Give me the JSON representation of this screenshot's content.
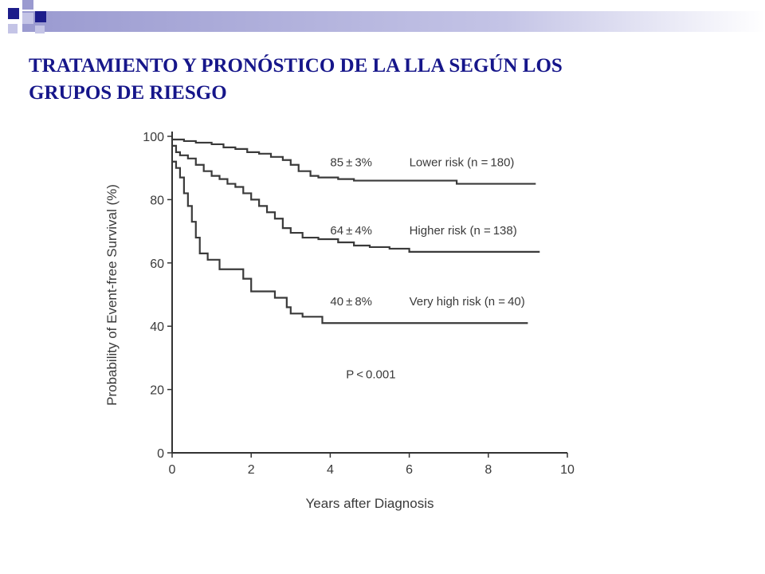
{
  "slide": {
    "title_line1": "TRATAMIENTO Y PRONÓSTICO DE LA LLA SEGÚN LOS",
    "title_line2": "GRUPOS DE RIESGO",
    "title_color": "#16168a",
    "accent_colors": [
      "#1c1c8a",
      "#9a9ad0",
      "#c4c4e6"
    ]
  },
  "chart_data": {
    "type": "line",
    "title": "",
    "xlabel": "Years after Diagnosis",
    "ylabel": "Probability of Event-free Survival (%)",
    "xlim": [
      0,
      10
    ],
    "ylim": [
      0,
      100
    ],
    "xticks": [
      0,
      2,
      4,
      6,
      8,
      10
    ],
    "yticks": [
      0,
      20,
      40,
      60,
      80,
      100
    ],
    "grid": false,
    "step": true,
    "series": [
      {
        "name": "Lower risk (n = 180)",
        "estimate": "85 ± 3%",
        "x": [
          0,
          0.3,
          0.6,
          1.0,
          1.3,
          1.6,
          1.9,
          2.2,
          2.5,
          2.8,
          3.0,
          3.2,
          3.5,
          3.7,
          4.2,
          4.6,
          5.0,
          6.0,
          7.2,
          9.2
        ],
        "values": [
          99,
          98.5,
          98,
          97.5,
          96.5,
          96,
          95,
          94.5,
          93.5,
          92.5,
          91,
          89,
          87.5,
          87,
          86.5,
          86,
          86,
          86,
          85,
          85
        ]
      },
      {
        "name": "Higher risk (n = 138)",
        "estimate": "64 ± 4%",
        "x": [
          0,
          0.1,
          0.2,
          0.4,
          0.6,
          0.8,
          1.0,
          1.2,
          1.4,
          1.6,
          1.8,
          2.0,
          2.2,
          2.4,
          2.6,
          2.8,
          3.0,
          3.3,
          3.7,
          4.2,
          4.6,
          5.0,
          5.5,
          6.0,
          9.3
        ],
        "values": [
          97,
          95,
          94,
          93,
          91,
          89,
          87.5,
          86.5,
          85,
          84,
          82,
          80,
          78,
          76,
          74,
          71,
          69.5,
          68,
          67.5,
          66.5,
          65.5,
          65,
          64.5,
          63.5,
          63.5
        ]
      },
      {
        "name": "Very high risk (n = 40)",
        "estimate": "40 ± 8%",
        "x": [
          0,
          0.1,
          0.2,
          0.3,
          0.4,
          0.5,
          0.6,
          0.7,
          0.9,
          1.2,
          1.6,
          1.8,
          2.0,
          2.5,
          2.6,
          2.9,
          3.0,
          3.3,
          3.6,
          3.8,
          9.0
        ],
        "values": [
          92,
          90,
          87,
          82,
          78,
          73,
          68,
          63,
          61,
          58,
          58,
          55,
          51,
          51,
          49,
          46,
          44,
          43,
          43,
          41,
          41
        ]
      }
    ],
    "annotations": [
      {
        "text": "P < 0.001",
        "x": 4.4,
        "y": 23.5
      }
    ]
  }
}
